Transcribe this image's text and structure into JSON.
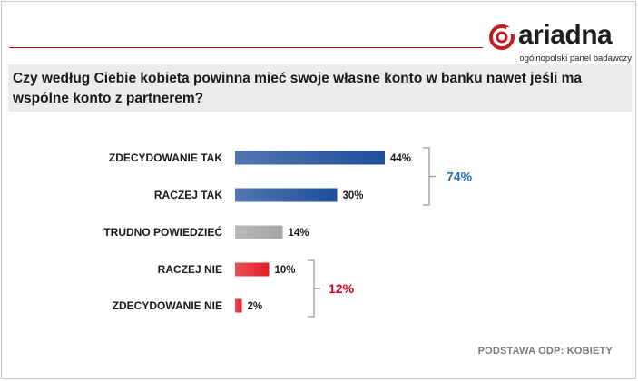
{
  "logo": {
    "name": "ariadna",
    "tagline": "ogólnopolski panel badawczy"
  },
  "question": "Czy według Ciebie kobieta powinna mieć swoje własne konto w banku nawet jeśli ma wspólne konto z partnerem?",
  "chart_data": {
    "type": "bar",
    "orientation": "horizontal",
    "title": "",
    "xlabel": "",
    "ylabel": "",
    "xlim": [
      0,
      44
    ],
    "grid": false,
    "categories": [
      "ZDECYDOWANIE TAK",
      "RACZEJ TAK",
      "TRUDNO POWIEDZIEĆ",
      "RACZEJ NIE",
      "ZDECYDOWANIE NIE"
    ],
    "values": [
      44,
      30,
      14,
      10,
      2
    ],
    "value_labels": [
      "44%",
      "30%",
      "14%",
      "10%",
      "2%"
    ],
    "colors": [
      "#1f4e9a",
      "#1f4e9a",
      "#a6a6a6",
      "#e31e24",
      "#e31e24"
    ],
    "groups": [
      {
        "label": "74%",
        "from": 0,
        "to": 1,
        "color": "#1f6fb5"
      },
      {
        "label": "12%",
        "from": 3,
        "to": 4,
        "color": "#d0021b"
      }
    ]
  },
  "footer": "PODSTAWA ODP: KOBIETY"
}
